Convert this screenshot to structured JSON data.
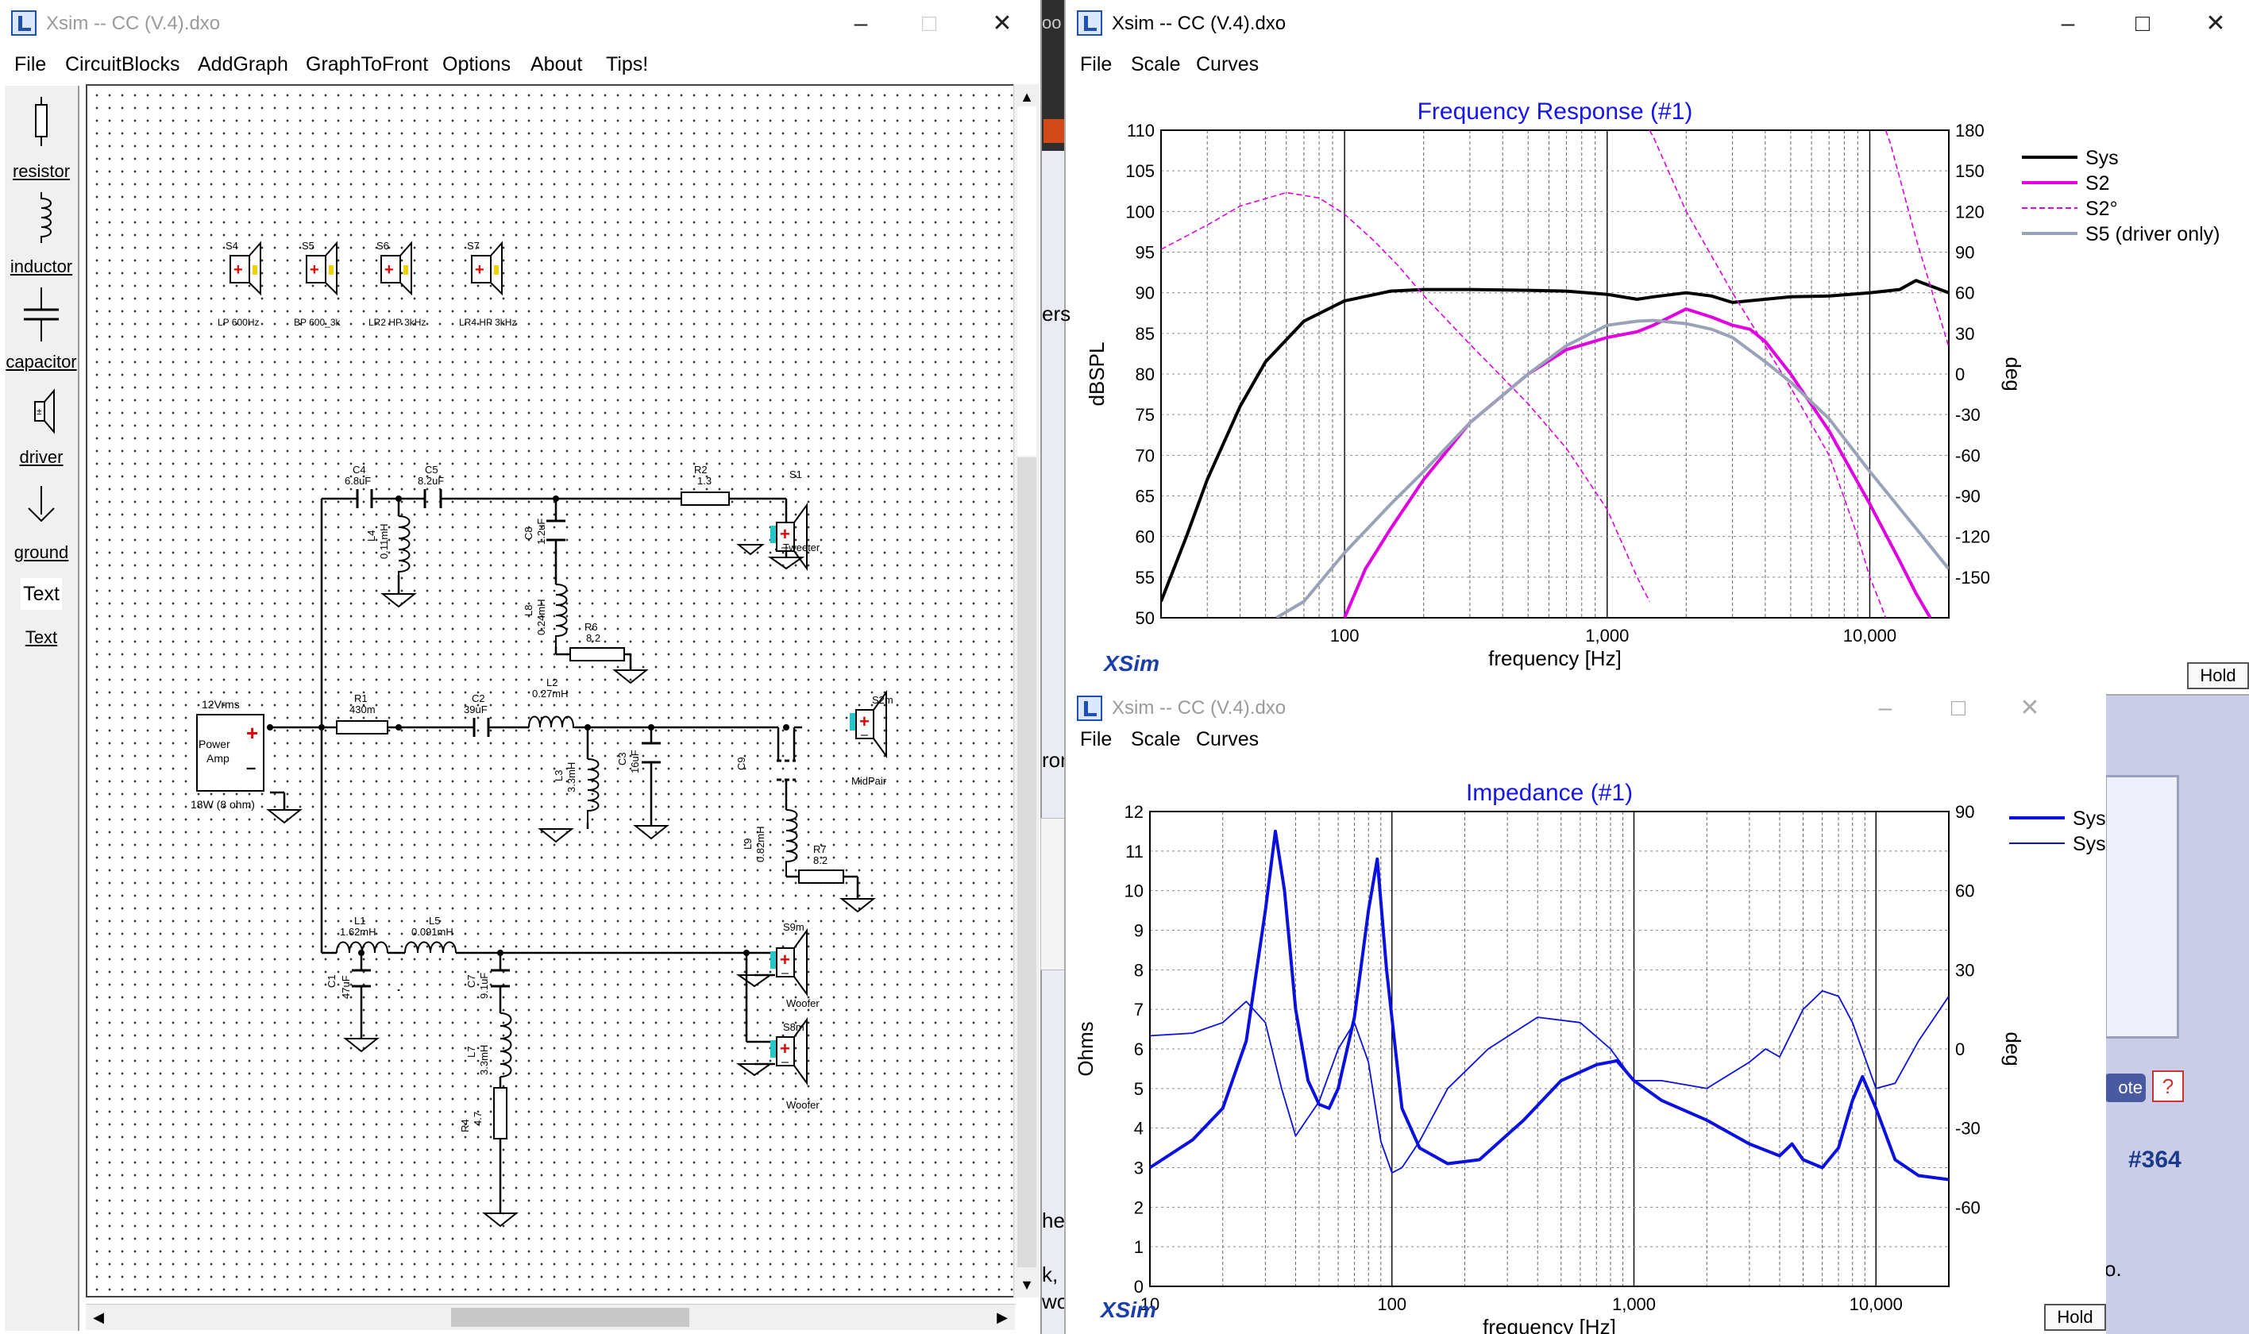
{
  "schematic_window": {
    "title": "Xsim -- CC (V.4).dxo",
    "menu": [
      "File",
      "CircuitBlocks",
      "AddGraph",
      "GraphToFront",
      "Options",
      "About",
      "Tips!"
    ],
    "palette": [
      "resistor",
      "inductor",
      "capacitor",
      "driver",
      "ground",
      "Text",
      "Text"
    ],
    "presets": [
      "S4",
      "S5",
      "S6",
      "S7"
    ],
    "preset_labels": [
      "LP 600Hz",
      "BP 600_3k",
      "LR2 HP 3kHz",
      "LR4 HP 3kHz"
    ],
    "components": {
      "C4": "C4",
      "C4v": "6.8uF",
      "C5": "C5",
      "C5v": "8.2uF",
      "R2": "R2",
      "R2v": "1.3",
      "S1": "S1",
      "S1t": "Tweeter",
      "L4": "L4",
      "L4v": "0.11mH",
      "C8": "C8",
      "C8v": "1.2uF",
      "L8": "L8",
      "L8v": "0.24mH",
      "R6": "R6",
      "R6v": "8.2",
      "amp_v": "12Vrms",
      "amp_name1": "Power",
      "amp_name2": "Amp",
      "amp_w": "18W (8 ohm)",
      "R1": "R1",
      "R1v": "430m",
      "C2": "C2",
      "C2v": "39uF",
      "L2": "L2",
      "L2v": "0.27mH",
      "S2m": "S2m",
      "S2mt": "MidPair",
      "L3": "L3",
      "L3v": "3.3mH",
      "C3": "C3",
      "C3v": "16uF",
      "C9": "C9",
      "L9": "L9",
      "L9v": "0.82mH",
      "R7": "R7",
      "R7v": "8.2",
      "L1": "L1",
      "L1v": "1.62mH",
      "L5": "L5",
      "L5v": "0.091mH",
      "S9m": "S9m",
      "S9mt": "Woofer",
      "S8m": "S8m",
      "S8mt": "Woofer",
      "C1": "C1",
      "C1v": "47uF",
      "C7": "C7",
      "C7v": "9.1uF",
      "L7": "L7",
      "L7v": "3.3mH",
      "R4": "R4",
      "R4v": "4.7"
    }
  },
  "freq_window": {
    "title": "Xsim -- CC (V.4).dxo",
    "menu": [
      "File",
      "Scale",
      "Curves"
    ],
    "brand": "XSim",
    "hold": "Hold"
  },
  "imp_window": {
    "title": "Xsim -- CC (V.4).dxo",
    "menu": [
      "File",
      "Scale",
      "Curves"
    ],
    "brand": "XSim",
    "hold": "Hold"
  },
  "background": {
    "fragments": [
      "oo",
      "ers",
      "ron",
      "he",
      "k,",
      "wo",
      "o."
    ],
    "thread_number": "#364",
    "vote_label": "ote"
  },
  "chart_data": [
    {
      "type": "line",
      "title": "Frequency Response (#1)",
      "xlabel": "frequency [Hz]",
      "ylabel": "dBSPL",
      "y2label": "deg",
      "xscale": "log",
      "xlim": [
        20,
        20000
      ],
      "ylim": [
        50,
        110
      ],
      "y2lim": [
        -180,
        180
      ],
      "xticks": [
        "100",
        "1,000",
        "10,000"
      ],
      "yticks": [
        "110",
        "105",
        "100",
        "95",
        "90",
        "85",
        "80",
        "75",
        "70",
        "65",
        "60",
        "55",
        "50"
      ],
      "y2ticks": [
        "180",
        "150",
        "120",
        "90",
        "60",
        "30",
        "0",
        "-30",
        "-60",
        "-90",
        "-120",
        "-150"
      ],
      "grid": true,
      "legend": "top-right",
      "legend_entries": [
        "Sys",
        "S2",
        "S2°",
        "S5 (driver only)"
      ],
      "colors": {
        "Sys": "#000000",
        "S2": "#e000e0",
        "S2°": "#e000e0",
        "S5 (driver only)": "#9aa2b8"
      },
      "series": [
        {
          "name": "Sys",
          "axis": "left",
          "x": [
            20,
            25,
            30,
            40,
            50,
            70,
            100,
            150,
            200,
            300,
            500,
            700,
            1000,
            1300,
            1500,
            2000,
            2500,
            3000,
            4000,
            5000,
            7000,
            10000,
            13000,
            15000,
            20000
          ],
          "y": [
            52,
            60,
            67,
            76,
            81.5,
            86.5,
            89,
            90.2,
            90.4,
            90.4,
            90.3,
            90.2,
            89.8,
            89.2,
            89.5,
            90,
            89.6,
            88.8,
            89.2,
            89.5,
            89.6,
            90,
            90.4,
            91.5,
            90
          ]
        },
        {
          "name": "S2",
          "axis": "left",
          "x": [
            100,
            120,
            150,
            200,
            300,
            500,
            700,
            1000,
            1300,
            1500,
            2000,
            2500,
            3000,
            3500,
            4000,
            5000,
            7000,
            10000,
            13000,
            15000,
            17000
          ],
          "y": [
            50,
            56,
            61,
            67,
            74,
            80,
            83,
            84.5,
            85.2,
            86,
            88,
            87,
            86,
            85.5,
            84,
            80,
            73,
            64,
            57,
            53,
            50
          ]
        },
        {
          "name": "S2°",
          "axis": "right",
          "x": [
            20,
            30,
            40,
            60,
            80,
            100,
            130,
            160,
            200,
            300,
            500,
            700,
            1000,
            1300,
            1450,
            1450,
            1500,
            2000,
            3000,
            5000,
            7000,
            9000,
            10000,
            11000,
            11500,
            11500,
            12000,
            15000,
            20000
          ],
          "y": [
            92,
            110,
            124,
            134,
            130,
            118,
            98,
            80,
            58,
            22,
            -22,
            -55,
            -100,
            -150,
            -168,
            180,
            175,
            120,
            60,
            -10,
            -60,
            -120,
            -150,
            -170,
            -180,
            180,
            170,
            100,
            20
          ]
        },
        {
          "name": "S5 (driver only)",
          "axis": "left",
          "x": [
            55,
            70,
            100,
            150,
            200,
            300,
            500,
            700,
            1000,
            1300,
            1500,
            2000,
            2500,
            3000,
            4000,
            5000,
            7000,
            10000,
            15000,
            20000
          ],
          "y": [
            50,
            52,
            58,
            64,
            68,
            74,
            80,
            83.5,
            86,
            86.5,
            86.6,
            86.2,
            85.5,
            84.5,
            81.5,
            79,
            74.5,
            68,
            61,
            56
          ]
        }
      ]
    },
    {
      "type": "line",
      "title": "Impedance (#1)",
      "xlabel": "frequency [Hz]",
      "ylabel": "Ohms",
      "y2label": "deg",
      "xscale": "log",
      "xlim": [
        10,
        20000
      ],
      "ylim": [
        0,
        12
      ],
      "y2lim": [
        -90,
        90
      ],
      "xticks": [
        "10",
        "100",
        "1,000",
        "10,000"
      ],
      "yticks": [
        "12",
        "11",
        "10",
        "9",
        "8",
        "7",
        "6",
        "5",
        "4",
        "3",
        "2",
        "1",
        "0"
      ],
      "y2ticks": [
        "90",
        "60",
        "30",
        "0",
        "-30",
        "-60"
      ],
      "grid": true,
      "legend": "top-right",
      "legend_entries": [
        "Sys",
        "Sys°"
      ],
      "colors": {
        "Sys": "#0a10e0",
        "Sys°": "#0a10e0"
      },
      "series": [
        {
          "name": "Sys",
          "axis": "left",
          "x": [
            10,
            15,
            20,
            25,
            30,
            33,
            36,
            40,
            45,
            50,
            55,
            60,
            70,
            80,
            87,
            95,
            110,
            130,
            170,
            230,
            350,
            500,
            700,
            850,
            1000,
            1300,
            2000,
            3000,
            4000,
            4500,
            5000,
            6000,
            7000,
            8000,
            8800,
            10000,
            12000,
            15000,
            20000
          ],
          "y": [
            3,
            3.7,
            4.5,
            6.2,
            9.5,
            11.5,
            10,
            7,
            5.2,
            4.6,
            4.5,
            5,
            6.8,
            9.5,
            10.8,
            8,
            4.5,
            3.5,
            3.1,
            3.2,
            4.2,
            5.2,
            5.6,
            5.7,
            5.2,
            4.7,
            4.2,
            3.6,
            3.3,
            3.6,
            3.2,
            3,
            3.5,
            4.7,
            5.3,
            4.5,
            3.2,
            2.8,
            2.7
          ]
        },
        {
          "name": "Sys°",
          "axis": "right",
          "x": [
            10,
            15,
            20,
            25,
            30,
            35,
            40,
            50,
            60,
            70,
            80,
            90,
            100,
            110,
            130,
            170,
            250,
            400,
            600,
            800,
            1000,
            1300,
            2000,
            3000,
            3500,
            4000,
            5000,
            6000,
            7000,
            8000,
            10000,
            12000,
            15000,
            20000
          ],
          "y": [
            5,
            6,
            10,
            18,
            10,
            -15,
            -33,
            -20,
            0,
            10,
            -5,
            -35,
            -47,
            -45,
            -35,
            -15,
            0,
            12,
            10,
            0,
            -12,
            -12,
            -15,
            -5,
            0,
            -3,
            15,
            22,
            20,
            10,
            -15,
            -13,
            3,
            20
          ]
        }
      ]
    }
  ]
}
